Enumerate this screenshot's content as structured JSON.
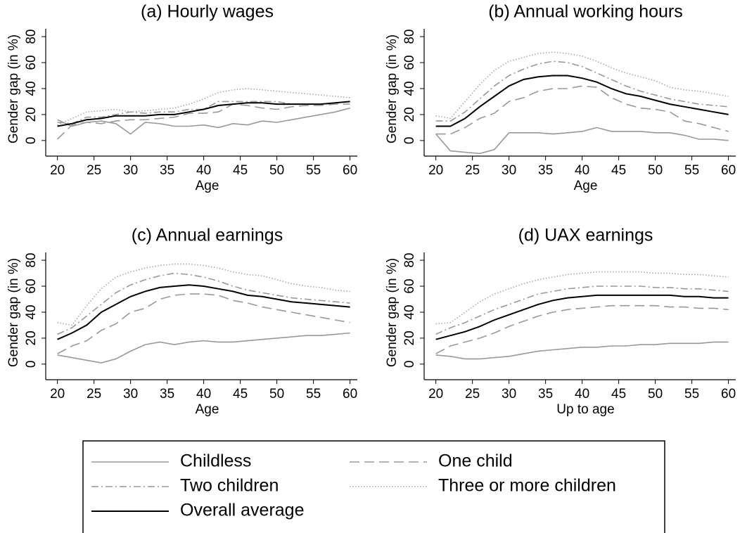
{
  "chart_data": [
    {
      "type": "line",
      "title": "(a) Hourly wages",
      "xlabel": "Age",
      "ylabel": "Gender gap (in %)",
      "x": [
        20,
        22,
        24,
        26,
        28,
        30,
        32,
        34,
        36,
        38,
        40,
        42,
        44,
        46,
        48,
        50,
        52,
        54,
        56,
        58,
        60
      ],
      "xlim": [
        18.4,
        61
      ],
      "xticks": [
        20,
        25,
        30,
        35,
        40,
        45,
        50,
        55,
        60
      ],
      "ylim": [
        -12,
        86
      ],
      "yticks": [
        0,
        20,
        40,
        60,
        80
      ],
      "series": [
        {
          "name": "Childless",
          "color": "#999999",
          "style": "solid",
          "values": [
            16,
            11,
            14,
            15,
            13,
            5,
            14,
            13,
            11,
            11,
            12,
            10,
            13,
            12,
            15,
            14,
            16,
            18,
            20,
            22,
            25
          ]
        },
        {
          "name": "One child",
          "color": "#999999",
          "style": "dashed",
          "values": [
            1,
            12,
            14,
            13,
            15,
            16,
            16,
            17,
            18,
            21,
            21,
            22,
            28,
            27,
            25,
            24,
            26,
            27,
            27,
            28,
            28
          ]
        },
        {
          "name": "Two children",
          "color": "#999999",
          "style": "dashdot",
          "values": [
            14,
            13,
            18,
            18,
            20,
            22,
            21,
            22,
            22,
            24,
            24,
            30,
            30,
            30,
            30,
            30,
            28,
            28,
            28,
            29,
            30
          ]
        },
        {
          "name": "Three or more children",
          "color": "#aaaaaa",
          "style": "dotted",
          "values": [
            12,
            17,
            22,
            23,
            24,
            22,
            23,
            24,
            25,
            28,
            32,
            37,
            39,
            40,
            39,
            38,
            37,
            36,
            35,
            34,
            33
          ]
        },
        {
          "name": "Overall average",
          "color": "#000000",
          "style": "solid",
          "values": [
            11,
            13,
            16,
            17,
            19,
            19,
            19,
            20,
            20,
            22,
            24,
            27,
            28,
            29,
            29,
            28,
            28,
            28,
            28,
            29,
            30
          ]
        }
      ]
    },
    {
      "type": "line",
      "title": "(b) Annual working hours",
      "xlabel": "Age",
      "ylabel": "Gender gap (in %)",
      "x": [
        20,
        22,
        24,
        26,
        28,
        30,
        32,
        34,
        36,
        38,
        40,
        42,
        44,
        46,
        48,
        50,
        52,
        54,
        56,
        58,
        60
      ],
      "xlim": [
        18.4,
        61
      ],
      "xticks": [
        20,
        25,
        30,
        35,
        40,
        45,
        50,
        55,
        60
      ],
      "ylim": [
        -12,
        86
      ],
      "yticks": [
        0,
        20,
        40,
        60,
        80
      ],
      "series": [
        {
          "name": "Childless",
          "color": "#999999",
          "style": "solid",
          "values": [
            5,
            -8,
            -9,
            -10,
            -7,
            6,
            6,
            6,
            5,
            6,
            7,
            10,
            7,
            7,
            7,
            6,
            6,
            4,
            1,
            1,
            0
          ]
        },
        {
          "name": "One child",
          "color": "#999999",
          "style": "dashed",
          "values": [
            5,
            5,
            10,
            17,
            21,
            30,
            33,
            38,
            40,
            40,
            42,
            41,
            33,
            28,
            25,
            24,
            22,
            15,
            13,
            10,
            7
          ]
        },
        {
          "name": "Two children",
          "color": "#999999",
          "style": "dashdot",
          "values": [
            15,
            15,
            22,
            32,
            42,
            50,
            55,
            59,
            61,
            60,
            57,
            52,
            47,
            42,
            38,
            35,
            32,
            30,
            28,
            27,
            26
          ]
        },
        {
          "name": "Three or more children",
          "color": "#aaaaaa",
          "style": "dotted",
          "values": [
            19,
            17,
            30,
            43,
            54,
            61,
            64,
            67,
            68,
            67,
            65,
            61,
            56,
            52,
            49,
            46,
            41,
            39,
            38,
            36,
            34
          ]
        },
        {
          "name": "Overall average",
          "color": "#000000",
          "style": "solid",
          "values": [
            11,
            11,
            17,
            26,
            34,
            42,
            47,
            49,
            50,
            50,
            48,
            45,
            40,
            36,
            34,
            31,
            28,
            26,
            24,
            22,
            20
          ]
        }
      ]
    },
    {
      "type": "line",
      "title": "(c) Annual earnings",
      "xlabel": "Age",
      "ylabel": "Gender gap (in %)",
      "x": [
        20,
        22,
        24,
        26,
        28,
        30,
        32,
        34,
        36,
        38,
        40,
        42,
        44,
        46,
        48,
        50,
        52,
        54,
        56,
        58,
        60
      ],
      "xlim": [
        18.4,
        61
      ],
      "xticks": [
        20,
        25,
        30,
        35,
        40,
        45,
        50,
        55,
        60
      ],
      "ylim": [
        -12,
        86
      ],
      "yticks": [
        0,
        20,
        40,
        60,
        80
      ],
      "series": [
        {
          "name": "Childless",
          "color": "#999999",
          "style": "solid",
          "values": [
            7,
            5,
            3,
            1,
            4,
            10,
            15,
            17,
            15,
            17,
            18,
            17,
            17,
            18,
            19,
            20,
            21,
            22,
            22,
            23,
            24
          ]
        },
        {
          "name": "One child",
          "color": "#999999",
          "style": "dashed",
          "values": [
            8,
            14,
            18,
            26,
            31,
            40,
            43,
            50,
            53,
            54,
            54,
            53,
            49,
            47,
            44,
            42,
            40,
            38,
            36,
            34,
            32
          ]
        },
        {
          "name": "Two children",
          "color": "#999999",
          "style": "dashdot",
          "values": [
            23,
            28,
            37,
            46,
            55,
            61,
            65,
            68,
            70,
            69,
            67,
            64,
            60,
            57,
            55,
            53,
            51,
            50,
            49,
            48,
            47
          ]
        },
        {
          "name": "Three or more children",
          "color": "#aaaaaa",
          "style": "dotted",
          "values": [
            32,
            30,
            45,
            58,
            67,
            71,
            74,
            76,
            77,
            77,
            76,
            74,
            71,
            69,
            68,
            65,
            62,
            60,
            59,
            57,
            56
          ]
        },
        {
          "name": "Overall average",
          "color": "#000000",
          "style": "solid",
          "values": [
            19,
            24,
            30,
            40,
            46,
            52,
            56,
            59,
            60,
            61,
            60,
            58,
            56,
            53,
            52,
            50,
            48,
            47,
            46,
            45,
            44
          ]
        }
      ]
    },
    {
      "type": "line",
      "title": "(d) UAX earnings",
      "xlabel": "Up to age",
      "ylabel": "Gender gap (in %)",
      "x": [
        20,
        22,
        24,
        26,
        28,
        30,
        32,
        34,
        36,
        38,
        40,
        42,
        44,
        46,
        48,
        50,
        52,
        54,
        56,
        58,
        60
      ],
      "xlim": [
        18.4,
        61
      ],
      "xticks": [
        20,
        25,
        30,
        35,
        40,
        45,
        50,
        55,
        60
      ],
      "ylim": [
        -12,
        86
      ],
      "yticks": [
        0,
        20,
        40,
        60,
        80
      ],
      "series": [
        {
          "name": "Childless",
          "color": "#999999",
          "style": "solid",
          "values": [
            7,
            6,
            4,
            4,
            5,
            6,
            8,
            10,
            11,
            12,
            13,
            13,
            14,
            14,
            15,
            15,
            16,
            16,
            16,
            17,
            17
          ]
        },
        {
          "name": "One child",
          "color": "#999999",
          "style": "dashed",
          "values": [
            8,
            14,
            17,
            20,
            24,
            29,
            33,
            37,
            40,
            42,
            43,
            44,
            45,
            45,
            45,
            45,
            44,
            44,
            43,
            43,
            42
          ]
        },
        {
          "name": "Two children",
          "color": "#999999",
          "style": "dashdot",
          "values": [
            23,
            28,
            32,
            37,
            42,
            46,
            50,
            54,
            56,
            58,
            59,
            60,
            60,
            60,
            60,
            59,
            59,
            58,
            58,
            57,
            56
          ]
        },
        {
          "name": "Three or more children",
          "color": "#aaaaaa",
          "style": "dotted",
          "values": [
            31,
            32,
            40,
            48,
            54,
            58,
            62,
            65,
            67,
            69,
            70,
            71,
            71,
            71,
            71,
            70,
            70,
            69,
            69,
            68,
            67
          ]
        },
        {
          "name": "Overall average",
          "color": "#000000",
          "style": "solid",
          "values": [
            19,
            22,
            25,
            29,
            34,
            38,
            42,
            46,
            49,
            51,
            52,
            53,
            53,
            53,
            53,
            53,
            53,
            52,
            52,
            51,
            51
          ]
        }
      ]
    }
  ]
}
